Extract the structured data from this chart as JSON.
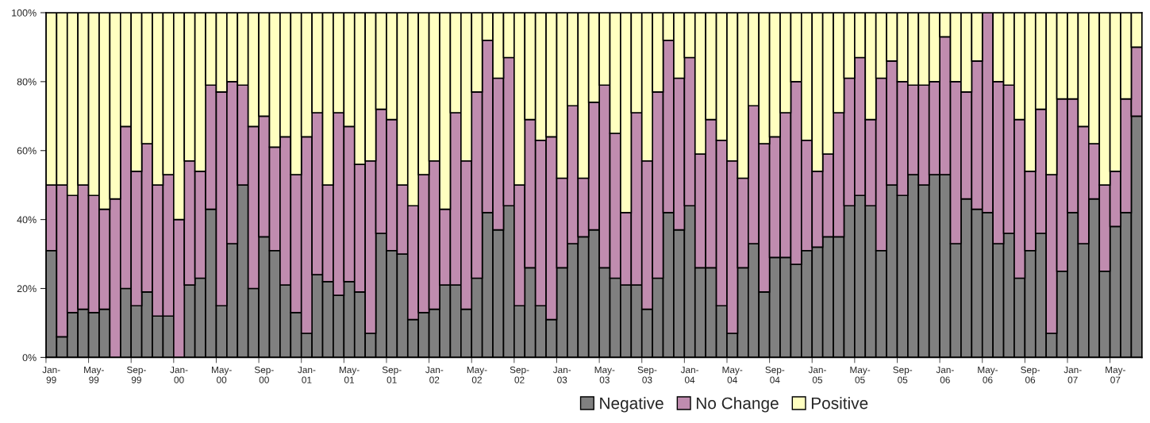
{
  "chart_data": {
    "type": "bar",
    "stacked": true,
    "categories": [
      "Jan-\n99",
      null,
      null,
      null,
      "May-\n99",
      null,
      null,
      null,
      "Sep-\n99",
      null,
      null,
      null,
      "Jan-\n00",
      null,
      null,
      null,
      "May-\n00",
      null,
      null,
      null,
      "Sep-\n00",
      null,
      null,
      null,
      "Jan-\n01",
      null,
      null,
      null,
      "May-\n01",
      null,
      null,
      null,
      "Sep-\n01",
      null,
      null,
      null,
      "Jan-\n02",
      null,
      null,
      null,
      "May-\n02",
      null,
      null,
      null,
      "Sep-\n02",
      null,
      null,
      null,
      "Jan-\n03",
      null,
      null,
      null,
      "May-\n03",
      null,
      null,
      null,
      "Sep-\n03",
      null,
      null,
      null,
      "Jan-\n04",
      null,
      null,
      null,
      "May-\n04",
      null,
      null,
      null,
      "Sep-\n04",
      null,
      null,
      null,
      "Jan-\n05",
      null,
      null,
      null,
      "May-\n05",
      null,
      null,
      null,
      "Sep-\n05",
      null,
      null,
      null,
      "Jan-\n06",
      null,
      null,
      null,
      "May-\n06",
      null,
      null,
      null,
      "Sep-\n06",
      null,
      null,
      null,
      "Jan-\n07",
      null,
      null,
      null,
      "May-\n07",
      null,
      null
    ],
    "series": [
      {
        "name": "Negative",
        "color": "#808080",
        "values": [
          31,
          6,
          13,
          14,
          13,
          14,
          0,
          20,
          15,
          19,
          12,
          12,
          0,
          21,
          23,
          43,
          15,
          33,
          50,
          20,
          35,
          31,
          21,
          13,
          7,
          24,
          22,
          18,
          22,
          19,
          7,
          36,
          31,
          30,
          11,
          13,
          14,
          21,
          21,
          14,
          23,
          42,
          37,
          44,
          15,
          26,
          15,
          11,
          26,
          33,
          35,
          37,
          26,
          23,
          21,
          21,
          14,
          23,
          42,
          37,
          44,
          26,
          26,
          15,
          7,
          26,
          33,
          19,
          29,
          29,
          27,
          31,
          32,
          35,
          35,
          44,
          47,
          44,
          31,
          50,
          47,
          53,
          50,
          53,
          53,
          33,
          46,
          43,
          42,
          33,
          36,
          23,
          31,
          36,
          7,
          25,
          42,
          33,
          46,
          25,
          38,
          42,
          70
        ]
      },
      {
        "name": "No Change",
        "color": "#c08caf",
        "values": [
          19,
          44,
          34,
          36,
          34,
          29,
          46,
          47,
          39,
          43,
          38,
          41,
          40,
          36,
          31,
          36,
          62,
          47,
          29,
          47,
          35,
          30,
          43,
          40,
          57,
          47,
          28,
          53,
          45,
          37,
          50,
          36,
          38,
          20,
          33,
          40,
          43,
          22,
          50,
          43,
          54,
          50,
          44,
          43,
          35,
          43,
          48,
          53,
          26,
          40,
          17,
          37,
          53,
          42,
          21,
          50,
          43,
          54,
          50,
          44,
          43,
          33,
          43,
          48,
          50,
          26,
          40,
          43,
          35,
          42,
          53,
          32,
          22,
          24,
          36,
          37,
          40,
          25,
          50,
          36,
          33,
          26,
          29,
          27,
          40,
          47,
          31,
          43,
          58,
          47,
          43,
          46,
          23,
          36,
          46,
          50,
          33,
          34,
          16,
          25,
          16,
          33,
          20
        ]
      },
      {
        "name": "Positive",
        "color": "#ffffc0",
        "values": [
          50,
          50,
          53,
          50,
          53,
          57,
          54,
          33,
          46,
          38,
          50,
          47,
          60,
          43,
          46,
          21,
          23,
          20,
          21,
          33,
          30,
          39,
          36,
          47,
          36,
          29,
          50,
          29,
          33,
          44,
          43,
          28,
          31,
          50,
          56,
          47,
          43,
          57,
          29,
          43,
          23,
          8,
          19,
          13,
          50,
          31,
          37,
          36,
          48,
          27,
          48,
          26,
          21,
          35,
          58,
          29,
          43,
          23,
          8,
          19,
          13,
          41,
          31,
          37,
          43,
          48,
          27,
          38,
          36,
          29,
          20,
          37,
          46,
          41,
          29,
          19,
          13,
          31,
          19,
          14,
          20,
          21,
          21,
          20,
          7,
          20,
          23,
          14,
          0,
          20,
          21,
          31,
          46,
          28,
          47,
          25,
          25,
          33,
          38,
          50,
          46,
          25,
          10
        ]
      }
    ],
    "ylim": [
      0,
      100
    ],
    "yticks": [
      {
        "value": 0,
        "label": "0%"
      },
      {
        "value": 20,
        "label": "20%"
      },
      {
        "value": 40,
        "label": "40%"
      },
      {
        "value": 60,
        "label": "60%"
      },
      {
        "value": 80,
        "label": "80%"
      },
      {
        "value": 100,
        "label": "100%"
      }
    ],
    "legend": "bottom"
  }
}
